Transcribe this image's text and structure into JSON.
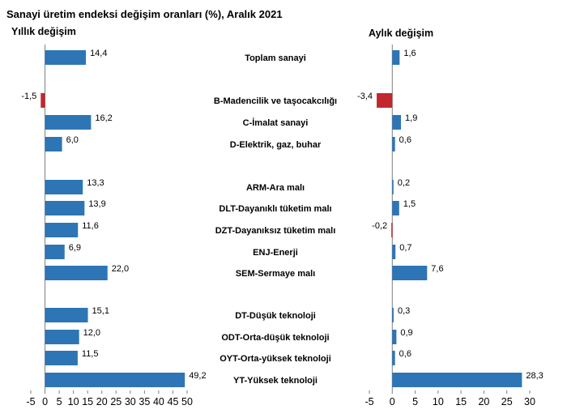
{
  "title": "Sanayi üretim endeksi değişim oranları (%), Aralık 2021",
  "chart_data": {
    "type": "bar",
    "orientation": "horizontal",
    "colors": {
      "positive": "#2E75B6",
      "negative": "#C0282D"
    },
    "categories": [
      "Toplam sanayi",
      "B-Madencilik ve taşocakcılığı",
      "C-İmalat sanayi",
      "D-Elektrik, gaz, buhar",
      "ARM-Ara malı",
      "DLT-Dayanıklı tüketim malı",
      "DZT-Dayanıksız tüketim malı",
      "ENJ-Enerji",
      "SEM-Sermaye malı",
      "DT-Düşük teknoloji",
      "ODT-Orta-düşük teknoloji",
      "OYT-Orta-yüksek teknoloji",
      "YT-Yüksek teknoloji"
    ],
    "series": [
      {
        "name": "Yıllık değişim",
        "values": [
          14.4,
          -1.5,
          16.2,
          6.0,
          13.3,
          13.9,
          11.6,
          6.9,
          22.0,
          15.1,
          12.0,
          11.5,
          49.2
        ],
        "labels": [
          "14,4",
          "-1,5",
          "16,2",
          "6,0",
          "13,3",
          "13,9",
          "11,6",
          "6,9",
          "22,0",
          "15,1",
          "12,0",
          "11,5",
          "49,2"
        ],
        "xlim": [
          -5,
          50
        ],
        "ticks": [
          "-5",
          "0",
          "5",
          "10",
          "15",
          "20",
          "25",
          "30",
          "35",
          "40",
          "45",
          "50"
        ]
      },
      {
        "name": "Aylık değişim",
        "values": [
          1.6,
          -3.4,
          1.9,
          0.6,
          0.2,
          1.5,
          -0.2,
          0.7,
          7.6,
          0.3,
          0.9,
          0.6,
          28.3
        ],
        "labels": [
          "1,6",
          "-3,4",
          "1,9",
          "0,6",
          "0,2",
          "1,5",
          "-0,2",
          "0,7",
          "7,6",
          "0,3",
          "0,9",
          "0,6",
          "28,3"
        ],
        "xlim": [
          -5,
          30
        ],
        "ticks": [
          "-5",
          "0",
          "5",
          "10",
          "15",
          "20",
          "25",
          "30"
        ]
      }
    ]
  }
}
